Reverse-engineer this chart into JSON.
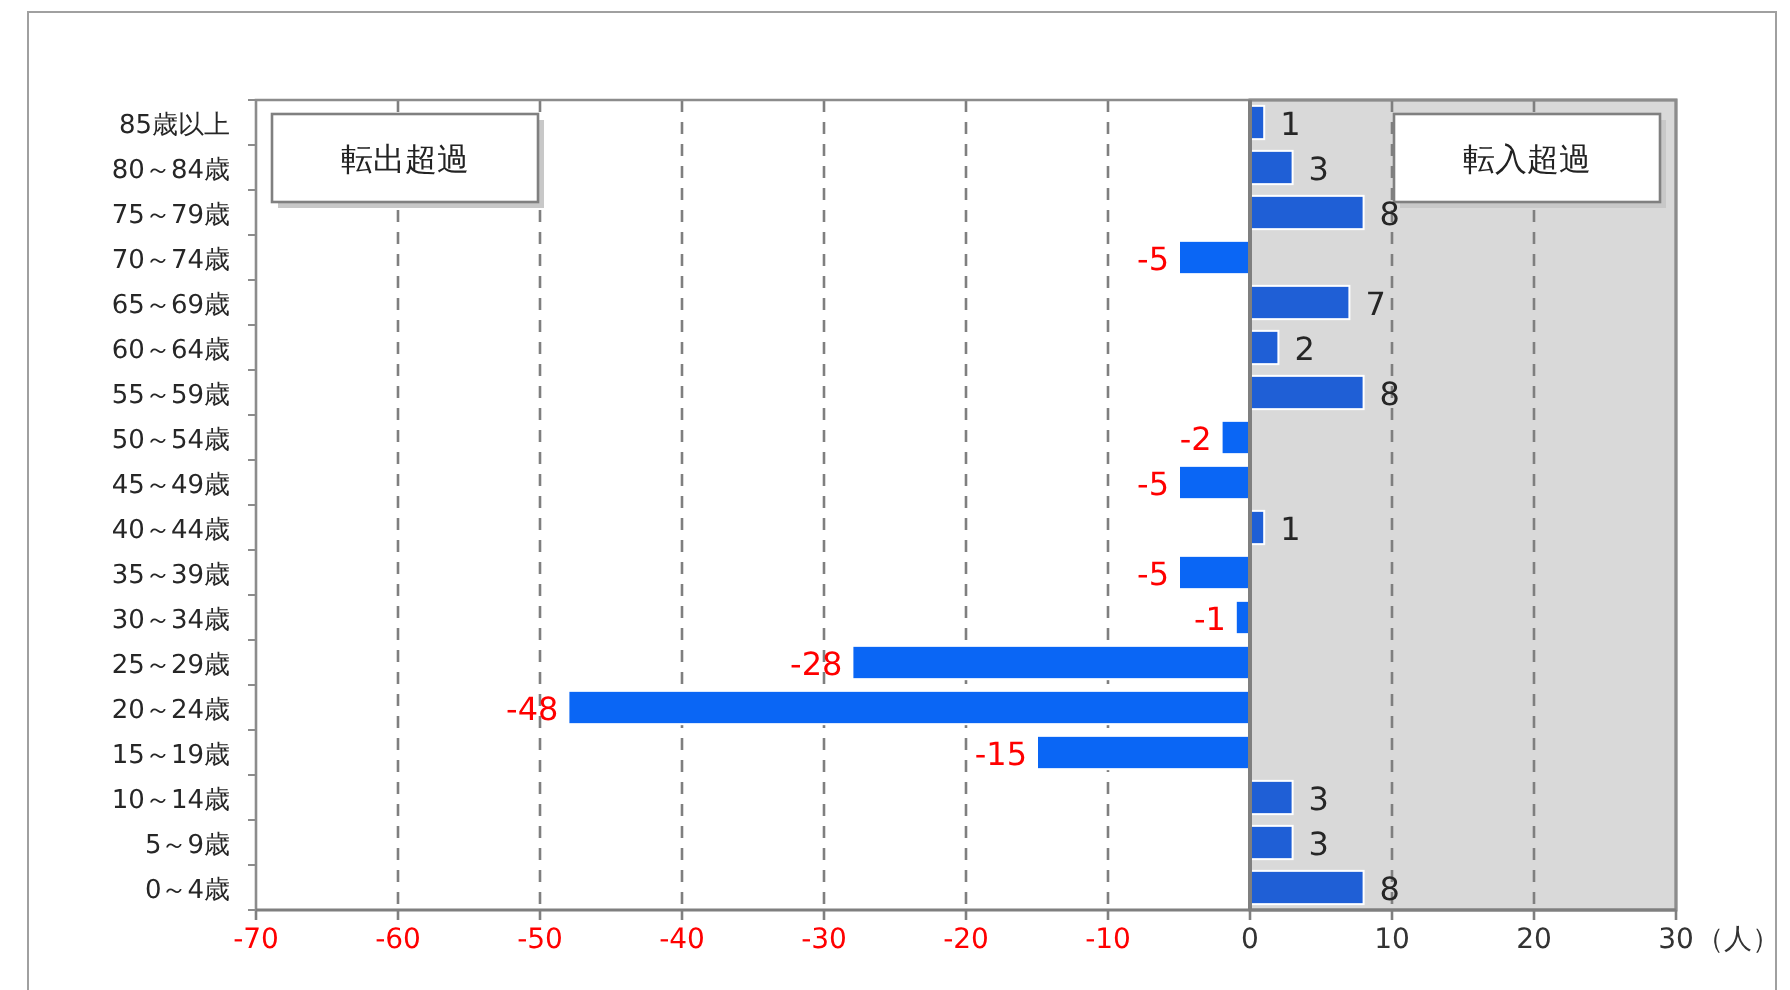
{
  "chart_data": {
    "type": "bar",
    "orientation": "horizontal",
    "categories": [
      "85歳以上",
      "80～84歳",
      "75～79歳",
      "70～74歳",
      "65～69歳",
      "60～64歳",
      "55～59歳",
      "50～54歳",
      "45～49歳",
      "40～44歳",
      "35～39歳",
      "30～34歳",
      "25～29歳",
      "20～24歳",
      "15～19歳",
      "10～14歳",
      "5～9歳",
      "0～4歳"
    ],
    "values": [
      1,
      3,
      8,
      -5,
      7,
      2,
      8,
      -2,
      -5,
      1,
      -5,
      -1,
      -28,
      -48,
      -15,
      3,
      3,
      8
    ],
    "colors": [
      "#1f5fd6",
      "#1f5fd6",
      "#1f5fd6",
      "#0a66f5",
      "#1f5fd6",
      "#1f5fd6",
      "#1f5fd6",
      "#0a66f5",
      "#0a66f5",
      "#1f5fd6",
      "#0a66f5",
      "#0a66f5",
      "#0a66f5",
      "#0a66f5",
      "#0a66f5",
      "#1f5fd6",
      "#1f5fd6",
      "#1f5fd6"
    ],
    "xlim": [
      -70,
      30
    ],
    "xticks": [
      -70,
      -60,
      -50,
      -40,
      -30,
      -20,
      -10,
      0,
      10,
      20,
      30
    ],
    "xlabel": "（人）",
    "grid": "x",
    "data_labels": true,
    "bands": [
      {
        "axis": "x",
        "from": 0,
        "to": 30,
        "color": "#d9d9d9"
      }
    ],
    "annotations": [
      "転出超過",
      "転入超過"
    ]
  }
}
